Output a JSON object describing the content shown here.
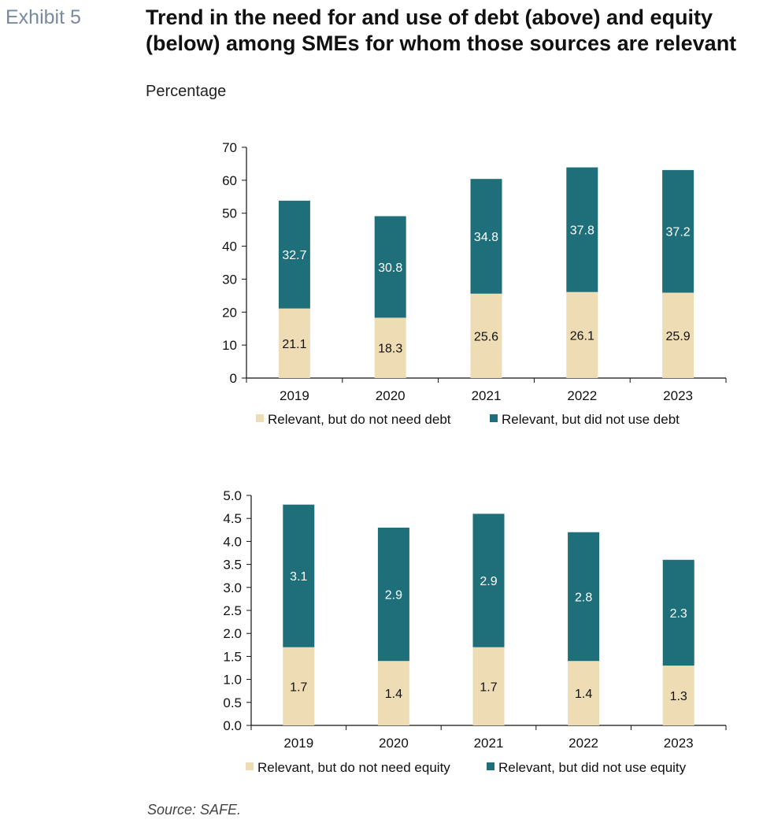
{
  "header": {
    "exhibit": "Exhibit 5",
    "title": "Trend in the need for and use of debt (above) and equity (below) among SMEs for whom those sources are relevant",
    "y_unit": "Percentage"
  },
  "source": "Source: SAFE.",
  "colors": {
    "not_need": "#eedcb5",
    "not_use": "#1e6f7a"
  },
  "chart_data": [
    {
      "type": "bar",
      "stacked": true,
      "categories": [
        "2019",
        "2020",
        "2021",
        "2022",
        "2023"
      ],
      "series": [
        {
          "name": "Relevant, but do not need debt",
          "values": [
            21.1,
            18.3,
            25.6,
            26.1,
            25.9
          ]
        },
        {
          "name": "Relevant, but did not use debt",
          "values": [
            32.7,
            30.8,
            34.8,
            37.8,
            37.2
          ]
        }
      ],
      "ylim": [
        0,
        70
      ],
      "yticks": [
        "0",
        "10",
        "20",
        "30",
        "40",
        "50",
        "60",
        "70"
      ],
      "legend": "bottom"
    },
    {
      "type": "bar",
      "stacked": true,
      "categories": [
        "2019",
        "2020",
        "2021",
        "2022",
        "2023"
      ],
      "series": [
        {
          "name": "Relevant, but do not need equity",
          "values": [
            1.7,
            1.4,
            1.7,
            1.4,
            1.3
          ]
        },
        {
          "name": "Relevant, but did not use equity",
          "values": [
            3.1,
            2.9,
            2.9,
            2.8,
            2.3
          ]
        }
      ],
      "ylim": [
        0,
        5
      ],
      "yticks": [
        "0.0",
        "0.5",
        "1.0",
        "1.5",
        "2.0",
        "2.5",
        "3.0",
        "3.5",
        "4.0",
        "4.5",
        "5.0"
      ],
      "legend": "bottom"
    }
  ]
}
